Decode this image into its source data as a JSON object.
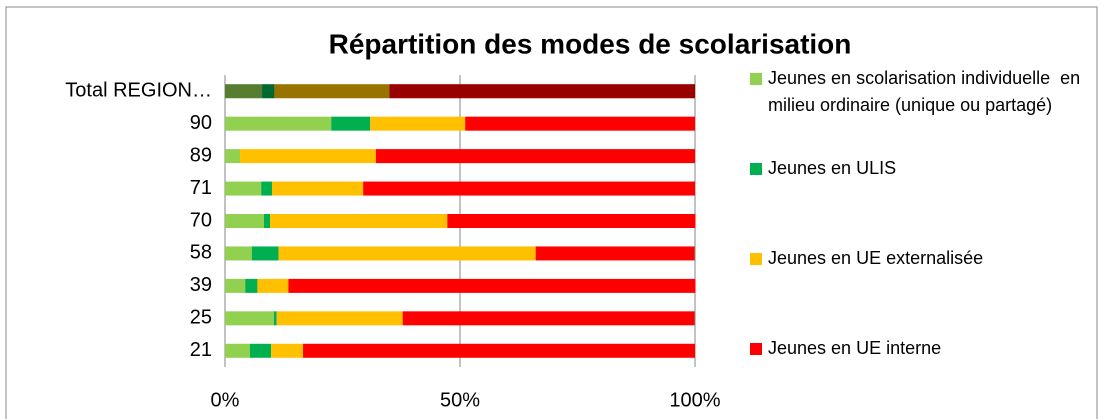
{
  "chart_data": {
    "type": "stacked_bar_horizontal",
    "title": "Répartition des modes de scolarisation",
    "categories": [
      "Total REGION…",
      "90",
      "89",
      "71",
      "70",
      "58",
      "39",
      "25",
      "21"
    ],
    "series": [
      {
        "name": "Jeunes en scolarisation individuelle  en milieu ordinaire (unique ou partagé)",
        "color": "#92d050",
        "values": [
          7.9,
          22.6,
          3.2,
          7.7,
          8.3,
          5.7,
          4.3,
          10.4,
          5.3
        ]
      },
      {
        "name": "Jeunes en ULIS",
        "color": "#00b050",
        "values": [
          2.6,
          8.3,
          0,
          2.3,
          1.3,
          5.7,
          2.6,
          0.6,
          4.5
        ]
      },
      {
        "name": "Jeunes en UE externalisée",
        "color": "#ffc000",
        "values": [
          24.5,
          20.2,
          28.9,
          19.4,
          37.7,
          54.7,
          6.6,
          26.8,
          6.8
        ]
      },
      {
        "name": "Jeunes en UE interne",
        "color": "#ff0000",
        "values": [
          65.0,
          48.9,
          67.9,
          70.6,
          52.8,
          33.8,
          86.6,
          62.1,
          83.4
        ]
      }
    ],
    "xlim": [
      0,
      100
    ],
    "xticks": [
      {
        "value": 0,
        "label": "0%"
      },
      {
        "value": 50,
        "label": "50%"
      },
      {
        "value": 100,
        "label": "100%"
      }
    ],
    "grid": true,
    "legend": "right"
  }
}
